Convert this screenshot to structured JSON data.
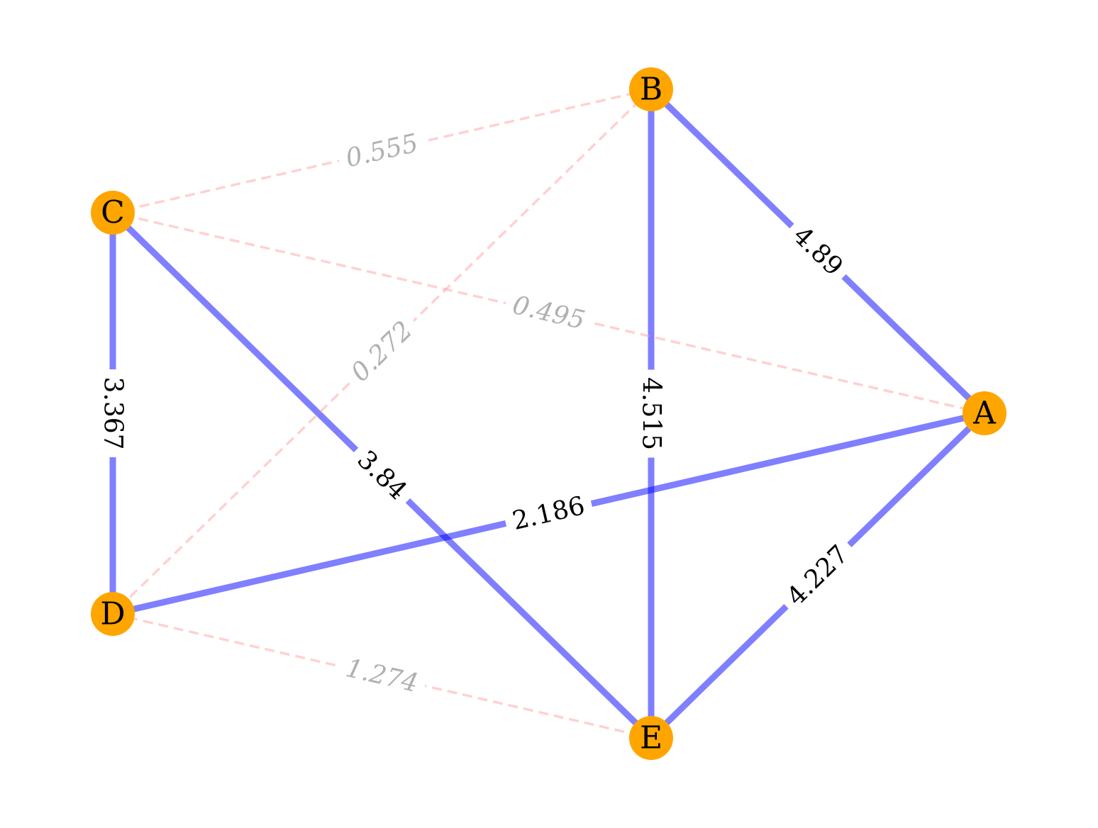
{
  "graph": {
    "node_color": "#FFA500",
    "strong_edge_color": "#0000FF",
    "weak_edge_color": "#FF9999",
    "weak_label_color": "#B0B0B0",
    "nodes": [
      {
        "id": "A",
        "label": "A"
      },
      {
        "id": "B",
        "label": "B"
      },
      {
        "id": "C",
        "label": "C"
      },
      {
        "id": "D",
        "label": "D"
      },
      {
        "id": "E",
        "label": "E"
      }
    ],
    "edges": [
      {
        "source": "A",
        "target": "B",
        "weight": "4.89",
        "kind": "strong"
      },
      {
        "source": "A",
        "target": "D",
        "weight": "2.186",
        "kind": "strong"
      },
      {
        "source": "A",
        "target": "E",
        "weight": "4.227",
        "kind": "strong"
      },
      {
        "source": "B",
        "target": "E",
        "weight": "4.515",
        "kind": "strong"
      },
      {
        "source": "C",
        "target": "D",
        "weight": "3.367",
        "kind": "strong"
      },
      {
        "source": "C",
        "target": "E",
        "weight": "3.84",
        "kind": "strong"
      },
      {
        "source": "B",
        "target": "C",
        "weight": "0.555",
        "kind": "weak"
      },
      {
        "source": "A",
        "target": "C",
        "weight": "0.495",
        "kind": "weak"
      },
      {
        "source": "B",
        "target": "D",
        "weight": "0.272",
        "kind": "weak"
      },
      {
        "source": "D",
        "target": "E",
        "weight": "1.274",
        "kind": "weak"
      }
    ]
  }
}
